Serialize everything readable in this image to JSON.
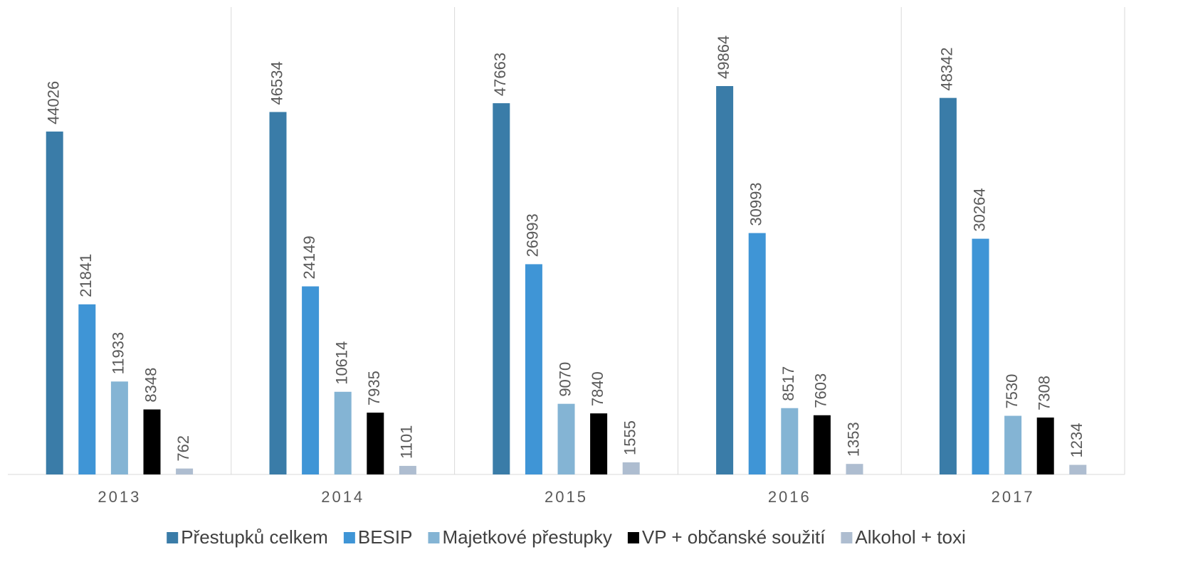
{
  "chart_data": {
    "type": "bar",
    "categories": [
      "2013",
      "2014",
      "2015",
      "2016",
      "2017"
    ],
    "series": [
      {
        "name": "Přestupků celkem",
        "color": "#3a7ca8",
        "values": [
          44026,
          46534,
          47663,
          49864,
          48342
        ]
      },
      {
        "name": "BESIP",
        "color": "#3f95d6",
        "values": [
          21841,
          24149,
          26993,
          30993,
          30264
        ]
      },
      {
        "name": "Majetkové přestupky",
        "color": "#84b4d4",
        "values": [
          11933,
          10614,
          9070,
          8517,
          7530
        ]
      },
      {
        "name": "VP + občanské soužití",
        "color": "#000000",
        "values": [
          8348,
          7935,
          7840,
          7603,
          7308
        ]
      },
      {
        "name": "Alkohol + toxi",
        "color": "#aebdd0",
        "values": [
          762,
          1101,
          1555,
          1353,
          1234
        ]
      }
    ],
    "ylim": [
      0,
      60000
    ],
    "legend": "bottom"
  }
}
